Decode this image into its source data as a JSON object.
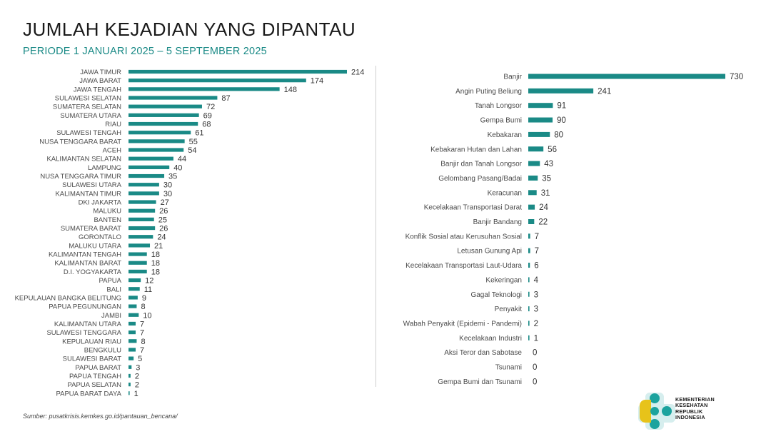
{
  "header": {
    "title": "JUMLAH KEJADIAN YANG DIPANTAU",
    "subtitle": "PERIODE 1 JANUARI 2025 – 5 SEPTEMBER 2025"
  },
  "footer": {
    "source": "Sumber: pusatkrisis.kemkes.go.id/pantauan_bencana/"
  },
  "logo": {
    "line1": "KEMENTERIAN",
    "line2": "KESEHATAN",
    "line3": "REPUBLIK",
    "line4": "INDONESIA"
  },
  "colors": {
    "bar": "#1a8a86",
    "subtitle": "#1a8a86",
    "logo_teal": "#1ca39e",
    "logo_yellow": "#e7c31a"
  },
  "chart_data": [
    {
      "type": "bar",
      "orientation": "horizontal",
      "categories": [
        "JAWA TIMUR",
        "JAWA BARAT",
        "JAWA TENGAH",
        "SULAWESI SELATAN",
        "SUMATERA SELATAN",
        "SUMATERA UTARA",
        "RIAU",
        "SULAWESI TENGAH",
        "NUSA TENGGARA BARAT",
        "ACEH",
        "KALIMANTAN SELATAN",
        "LAMPUNG",
        "NUSA TENGGARA TIMUR",
        "SULAWESI UTARA",
        "KALIMANTAN TIMUR",
        "DKI JAKARTA",
        "MALUKU",
        "BANTEN",
        "SUMATERA BARAT",
        "GORONTALO",
        "MALUKU UTARA",
        "KALIMANTAN TENGAH",
        "KALIMANTAN BARAT",
        "D.I. YOGYAKARTA",
        "PAPUA",
        "BALI",
        "KEPULAUAN BANGKA BELITUNG",
        "PAPUA PEGUNUNGAN",
        "JAMBI",
        "KALIMANTAN UTARA",
        "SULAWESI TENGGARA",
        "KEPULAUAN RIAU",
        "BENGKULU",
        "SULAWESI BARAT",
        "PAPUA BARAT",
        "PAPUA TENGAH",
        "PAPUA SELATAN",
        "PAPUA BARAT DAYA"
      ],
      "values": [
        214,
        174,
        148,
        87,
        72,
        69,
        68,
        61,
        55,
        54,
        44,
        40,
        35,
        30,
        30,
        27,
        26,
        25,
        26,
        24,
        21,
        18,
        18,
        18,
        12,
        11,
        9,
        8,
        10,
        7,
        7,
        8,
        7,
        5,
        3,
        2,
        2,
        1
      ]
    },
    {
      "type": "bar",
      "orientation": "horizontal",
      "categories": [
        "Banjir",
        "Angin Puting Beliung",
        "Tanah Longsor",
        "Gempa Bumi",
        "Kebakaran",
        "Kebakaran Hutan dan Lahan",
        "Banjir dan Tanah Longsor",
        "Gelombang Pasang/Badai",
        "Keracunan",
        "Kecelakaan Transportasi Darat",
        "Banjir Bandang",
        "Konflik Sosial atau Kerusuhan Sosial",
        "Letusan Gunung Api",
        "Kecelakaan Transportasi Laut-Udara",
        "Kekeringan",
        "Gagal Teknologi",
        "Penyakit",
        "Wabah Penyakit (Epidemi - Pandemi)",
        "Kecelakaan Industri",
        "Aksi Teror dan Sabotase",
        "Tsunami",
        "Gempa Bumi dan Tsunami"
      ],
      "values": [
        730,
        241,
        91,
        90,
        80,
        56,
        43,
        35,
        31,
        24,
        22,
        7,
        7,
        6,
        4,
        3,
        3,
        2,
        1,
        0,
        0,
        0
      ]
    }
  ]
}
